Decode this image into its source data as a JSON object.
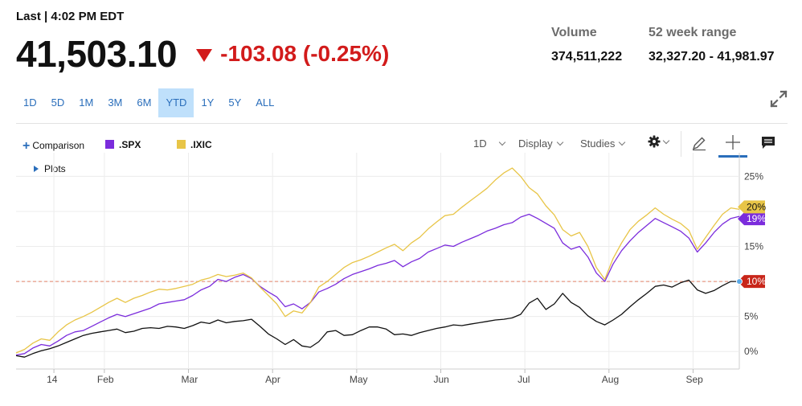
{
  "quote": {
    "last_label": "Last | 4:02 PM EDT",
    "price": "41,503.10",
    "change": "-103.08 (-0.25%)",
    "volume_label": "Volume",
    "volume_value": "374,511,222",
    "range_label": "52 week range",
    "range_value": "32,327.20 - 41,981.97"
  },
  "colors": {
    "down": "#d21b1b",
    "accent": "#2a6ebb",
    "spx": "#7b2cdc",
    "ixic": "#e8c547",
    "main": "#111111",
    "reference": "#e79a84"
  },
  "time_ranges": [
    {
      "label": "1D",
      "active": false
    },
    {
      "label": "5D",
      "active": false
    },
    {
      "label": "1M",
      "active": false
    },
    {
      "label": "3M",
      "active": false
    },
    {
      "label": "6M",
      "active": false
    },
    {
      "label": "YTD",
      "active": true
    },
    {
      "label": "1Y",
      "active": false
    },
    {
      "label": "5Y",
      "active": false
    },
    {
      "label": "ALL",
      "active": false
    }
  ],
  "toolbar": {
    "comparison": "Comparison",
    "interval": "1D",
    "display": "Display",
    "studies": "Studies",
    "plots": "Plots",
    "icons": [
      "expand-icon",
      "settings-icon",
      "pencil-icon",
      "crosshair-icon",
      "comment-icon"
    ]
  },
  "chart_data": {
    "type": "line",
    "x_tick_labels": [
      "14",
      "Feb",
      "Mar",
      "Apr",
      "May",
      "Jun",
      "Jul",
      "Aug",
      "Sep"
    ],
    "y_tick_labels": [
      "0%",
      "5%",
      "10%",
      "15%",
      "20%",
      "25%"
    ],
    "ylim": [
      -2.5,
      27
    ],
    "y_ticks": [
      0,
      5,
      10,
      15,
      20,
      25
    ],
    "grid": true,
    "reference_line": 10,
    "series": [
      {
        "name": ".SPX",
        "color": "#7b2cdc",
        "end_label": "19%",
        "values": [
          -0.5,
          -0.3,
          0.5,
          1.0,
          0.8,
          1.5,
          2.3,
          2.8,
          3.0,
          3.6,
          4.2,
          4.8,
          5.3,
          5.0,
          5.4,
          5.8,
          6.2,
          6.8,
          7.0,
          7.2,
          7.4,
          8.0,
          8.8,
          9.3,
          10.3,
          10.0,
          10.6,
          11.0,
          10.4,
          9.3,
          8.5,
          7.8,
          6.4,
          6.8,
          6.1,
          7.0,
          8.5,
          9.0,
          9.6,
          10.4,
          11.0,
          11.4,
          11.8,
          12.3,
          12.6,
          13.0,
          12.1,
          12.8,
          13.3,
          14.2,
          14.7,
          15.2,
          15.0,
          15.6,
          16.1,
          16.6,
          17.2,
          17.6,
          18.1,
          18.4,
          19.2,
          19.6,
          19.0,
          18.3,
          17.6,
          15.5,
          14.6,
          15.0,
          13.5,
          11.2,
          10.0,
          12.5,
          14.4,
          15.8,
          17.0,
          18.0,
          19.0,
          18.4,
          17.8,
          17.2,
          16.2,
          14.2,
          15.5,
          17.0,
          18.2,
          19.0,
          19.3
        ]
      },
      {
        "name": ".IXIC",
        "color": "#e8c547",
        "end_label": "20%",
        "values": [
          -0.2,
          0.3,
          1.2,
          1.8,
          1.6,
          2.8,
          3.8,
          4.5,
          5.0,
          5.6,
          6.3,
          7.0,
          7.6,
          7.0,
          7.6,
          8.0,
          8.5,
          8.9,
          8.8,
          9.0,
          9.3,
          9.6,
          10.2,
          10.5,
          11.0,
          10.7,
          10.9,
          11.2,
          10.5,
          9.2,
          8.0,
          6.8,
          5.0,
          5.8,
          5.5,
          7.0,
          9.2,
          10.0,
          11.0,
          12.0,
          12.7,
          13.1,
          13.6,
          14.2,
          14.8,
          15.3,
          14.4,
          15.5,
          16.3,
          17.5,
          18.5,
          19.4,
          19.6,
          20.6,
          21.5,
          22.4,
          23.3,
          24.5,
          25.5,
          26.2,
          25.0,
          23.4,
          22.5,
          20.8,
          19.5,
          17.4,
          16.5,
          17.0,
          15.0,
          12.0,
          10.3,
          13.3,
          15.5,
          17.4,
          18.6,
          19.5,
          20.5,
          19.6,
          18.9,
          18.3,
          17.3,
          14.6,
          16.3,
          18.0,
          19.6,
          20.5,
          20.3
        ]
      },
      {
        "name": "",
        "color": "#111111",
        "end_label": "10%",
        "values": [
          -0.6,
          -0.8,
          -0.3,
          0.1,
          0.4,
          0.8,
          1.3,
          1.8,
          2.3,
          2.6,
          2.8,
          3.0,
          3.2,
          2.7,
          2.9,
          3.3,
          3.4,
          3.3,
          3.6,
          3.5,
          3.3,
          3.7,
          4.2,
          4.0,
          4.5,
          4.1,
          4.3,
          4.4,
          4.6,
          3.6,
          2.5,
          1.8,
          1.0,
          1.7,
          0.8,
          0.6,
          1.4,
          2.8,
          3.0,
          2.3,
          2.4,
          3.0,
          3.5,
          3.5,
          3.2,
          2.4,
          2.5,
          2.3,
          2.7,
          3.0,
          3.3,
          3.5,
          3.8,
          3.7,
          3.9,
          4.1,
          4.3,
          4.5,
          4.6,
          4.8,
          5.3,
          6.9,
          7.6,
          6.0,
          6.8,
          8.3,
          7.0,
          6.3,
          5.1,
          4.3,
          3.8,
          4.5,
          5.3,
          6.4,
          7.4,
          8.3,
          9.3,
          9.5,
          9.2,
          9.8,
          10.2,
          8.8,
          8.3,
          8.7,
          9.4,
          10.0,
          10.0
        ]
      }
    ]
  }
}
